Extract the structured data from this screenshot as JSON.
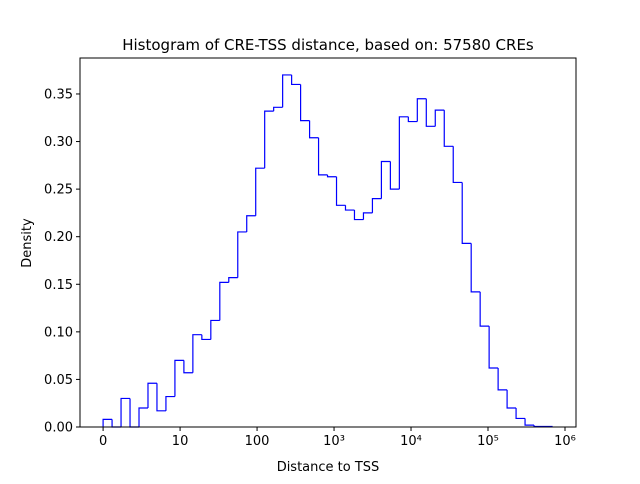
{
  "chart_data": {
    "type": "histogram",
    "title": "Histogram of CRE-TSS distance, based on: 57580 CREs",
    "x_label": "Distance to TSS",
    "y_label": "Density",
    "color": "#0000ff",
    "xscale": "symlog",
    "linthresh": 10,
    "bins": [
      0,
      1.166,
      2.332,
      3.499,
      4.665,
      5.831,
      6.997,
      8.163,
      9.33,
      11.21,
      14.66,
      19.18,
      25.08,
      32.82,
      42.92,
      56.15,
      73.42,
      96.05,
      125.6,
      164.3,
      214.9,
      281.2,
      367.8,
      481.2,
      629.4,
      823.2,
      1077,
      1408,
      1842,
      2410,
      3152,
      4123,
      5393,
      7055,
      9229,
      12070,
      15790,
      20650,
      27020,
      35340,
      46230,
      60470,
      79070,
      103400,
      135300,
      177000,
      231500,
      302800,
      396100,
      518100,
      677700
    ],
    "values": [
      0.008,
      0,
      0.03,
      0,
      0.02,
      0.046,
      0.017,
      0.032,
      0.07,
      0.057,
      0.097,
      0.092,
      0.112,
      0.152,
      0.157,
      0.205,
      0.222,
      0.272,
      0.332,
      0.336,
      0.37,
      0.36,
      0.322,
      0.304,
      0.265,
      0.263,
      0.233,
      0.228,
      0.218,
      0.225,
      0.24,
      0.279,
      0.25,
      0.326,
      0.321,
      0.345,
      0.316,
      0.333,
      0.295,
      0.257,
      0.193,
      0.142,
      0.106,
      0.062,
      0.039,
      0.02,
      0.009,
      0.002,
      0.0005,
      0.0005
    ],
    "xlim": [
      -3,
      1390000
    ],
    "xticks": [
      0,
      10,
      100,
      {
        "value": 1000,
        "label": "10³"
      },
      {
        "value": 10000,
        "label": "10⁴"
      },
      {
        "value": 100000,
        "label": "10⁵"
      },
      {
        "value": 1000000,
        "label": "10⁶"
      }
    ],
    "ylim": [
      0,
      0.3878
    ],
    "yticks": [
      {
        "value": 0,
        "label": "0.00"
      },
      {
        "value": 0.05,
        "label": "0.05"
      },
      {
        "value": 0.1,
        "label": "0.10"
      },
      {
        "value": 0.15,
        "label": "0.15"
      },
      {
        "value": 0.2,
        "label": "0.20"
      },
      {
        "value": 0.25,
        "label": "0.25"
      },
      {
        "value": 0.3,
        "label": "0.30"
      },
      {
        "value": 0.35,
        "label": "0.35"
      }
    ]
  }
}
